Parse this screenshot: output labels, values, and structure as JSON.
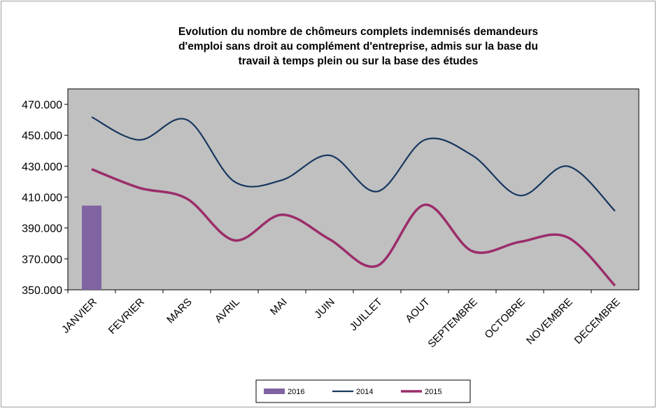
{
  "chart_data": {
    "type": "combo",
    "title": [
      "Evolution du nombre de chômeurs complets indemnisés demandeurs",
      "d'emploi sans droit au complément d'entreprise, admis sur la base du",
      "travail à temps plein ou sur la base des études"
    ],
    "categories": [
      "JANVIER",
      "FEVRIER",
      "MARS",
      "AVRIL",
      "MAI",
      "JUIN",
      "JUILLET",
      "AOUT",
      "SEPTEMBRE",
      "OCTOBRE",
      "NOVEMBRE",
      "DECEMBRE"
    ],
    "series": [
      {
        "name": "2016",
        "type": "bar",
        "color": "#8064a2",
        "values": [
          404500,
          null,
          null,
          null,
          null,
          null,
          null,
          null,
          null,
          null,
          null,
          null
        ]
      },
      {
        "name": "2014",
        "type": "line",
        "color": "#17375e",
        "values": [
          461800,
          447000,
          460000,
          420000,
          421000,
          437000,
          413600,
          447000,
          437000,
          411000,
          430000,
          401000
        ]
      },
      {
        "name": "2015",
        "type": "line",
        "color": "#9b2d6a",
        "values": [
          428000,
          416000,
          409000,
          382000,
          398600,
          382700,
          365500,
          405000,
          375000,
          381000,
          384000,
          352700
        ]
      }
    ],
    "ylim": [
      350000,
      480000
    ],
    "yticks": [
      {
        "value": 350000,
        "label": "350.000"
      },
      {
        "value": 370000,
        "label": "370.000"
      },
      {
        "value": 390000,
        "label": "390.000"
      },
      {
        "value": 410000,
        "label": "410.000"
      },
      {
        "value": 430000,
        "label": "430.000"
      },
      {
        "value": 450000,
        "label": "450.000"
      },
      {
        "value": 470000,
        "label": "470.000"
      }
    ],
    "grid": false,
    "legend": "bottom",
    "plot_background": "#c0c0c0"
  }
}
